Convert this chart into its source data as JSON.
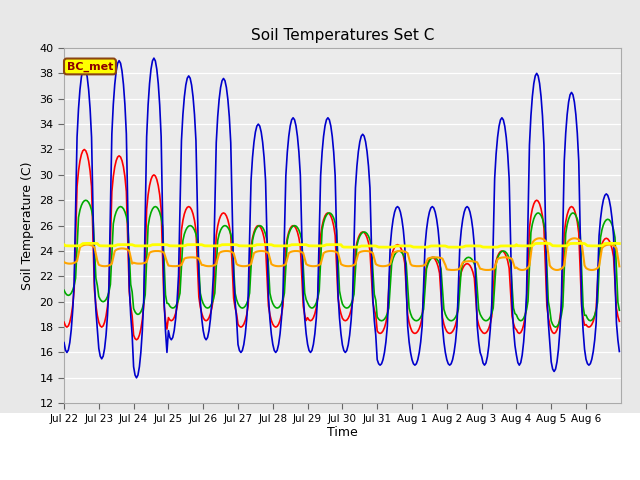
{
  "title": "Soil Temperatures Set C",
  "xlabel": "Time",
  "ylabel": "Soil Temperature (C)",
  "ylim": [
    12,
    40
  ],
  "yticks": [
    12,
    14,
    16,
    18,
    20,
    22,
    24,
    26,
    28,
    30,
    32,
    34,
    36,
    38,
    40
  ],
  "annotation": "BC_met",
  "annotation_color": "#8B0000",
  "annotation_bg": "#FFFF00",
  "fig_bg_color": "#E8E8E8",
  "plot_bg": "#EBEBEB",
  "legend_bg": "#FFFFFF",
  "line_colors": {
    "-2cm": "#FF0000",
    "-4cm": "#0000CC",
    "-8cm": "#00AA00",
    "-16cm": "#FFA500",
    "-32cm": "#FFFF00"
  },
  "x_tick_labels": [
    "Jul 22",
    "Jul 23",
    "Jul 24",
    "Jul 25",
    "Jul 26",
    "Jul 27",
    "Jul 28",
    "Jul 29",
    "Jul 30",
    "Jul 31",
    "Aug 1",
    "Aug 2",
    "Aug 3",
    "Aug 4",
    "Aug 5",
    "Aug 6"
  ],
  "num_days": 16,
  "samples_per_day": 24
}
